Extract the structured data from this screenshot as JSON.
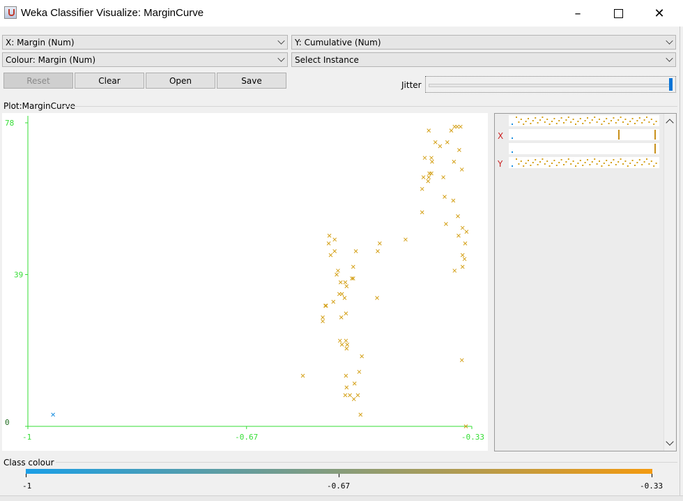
{
  "window": {
    "title": "Weka Classifier Visualize: MarginCurve"
  },
  "controls": {
    "x_axis": "X: Margin (Num)",
    "y_axis": "Y: Cumulative (Num)",
    "colour": "Colour: Margin (Num)",
    "instance": "Select Instance",
    "reset": "Reset",
    "clear": "Clear",
    "open": "Open",
    "save": "Save",
    "jitter_label": "Jitter"
  },
  "plot": {
    "title": "Plot:MarginCurve",
    "x_ticks": [
      "-1",
      "-0.67",
      "-0.33"
    ],
    "y_ticks": [
      "78",
      "39",
      "0"
    ],
    "axis_color": "#33dd33",
    "point_color": "#d4a017",
    "outlier_color": "#1a8fe0"
  },
  "side_panel": {
    "x_label": "X",
    "y_label": "Y"
  },
  "legend": {
    "title": "Class colour",
    "ticks": [
      "-1",
      "-0.67",
      "-0.33"
    ],
    "start_color": "#1a9ee6",
    "end_color": "#f39a10"
  },
  "chart_data": {
    "type": "scatter",
    "xlim": [
      -1,
      -0.33
    ],
    "ylim": [
      0,
      78
    ],
    "x": [
      -0.962,
      -0.585,
      -0.555,
      -0.555,
      -0.55,
      -0.551,
      -0.543,
      -0.537,
      -0.546,
      -0.537,
      -0.545,
      -0.534,
      -0.539,
      -0.53,
      -0.528,
      -0.532,
      -0.519,
      -0.521,
      -0.529,
      -0.527,
      -0.52,
      -0.522,
      -0.526,
      -0.519,
      -0.52,
      -0.526,
      -0.518,
      -0.509,
      -0.514,
      -0.521,
      -0.508,
      -0.507,
      -0.5,
      -0.502,
      -0.52,
      -0.519,
      -0.509,
      -0.498,
      -0.505,
      -0.511,
      -0.496,
      -0.473,
      -0.469,
      -0.472,
      -0.43,
      -0.405,
      -0.405,
      -0.395,
      -0.403,
      -0.396,
      -0.394,
      -0.391,
      -0.39,
      -0.401,
      -0.391,
      -0.378,
      -0.367,
      -0.385,
      -0.356,
      -0.395,
      -0.352,
      -0.361,
      -0.347,
      -0.349,
      -0.357,
      -0.345,
      -0.373,
      -0.371,
      -0.358,
      -0.351,
      -0.369,
      -0.35,
      -0.338,
      -0.344,
      -0.34,
      -0.344,
      -0.341,
      -0.344,
      -0.356,
      -0.339,
      -0.345
    ],
    "y": [
      3,
      13,
      27,
      28,
      31,
      31,
      44,
      45,
      47,
      48,
      49,
      39,
      32,
      34,
      37,
      40,
      36,
      37,
      22,
      28,
      29,
      33,
      34,
      20,
      22,
      21,
      21,
      41,
      8,
      8,
      7,
      11,
      14,
      8,
      13,
      10,
      38,
      3,
      45,
      38,
      18,
      33,
      47,
      45,
      48,
      61,
      55,
      64,
      64,
      63,
      65,
      65,
      68,
      69,
      69,
      72,
      73,
      73,
      77,
      76,
      77,
      76,
      77,
      71,
      68,
      66,
      64,
      59,
      58,
      54,
      52,
      49,
      50,
      51,
      47,
      44,
      43,
      41,
      40,
      0,
      17
    ]
  }
}
